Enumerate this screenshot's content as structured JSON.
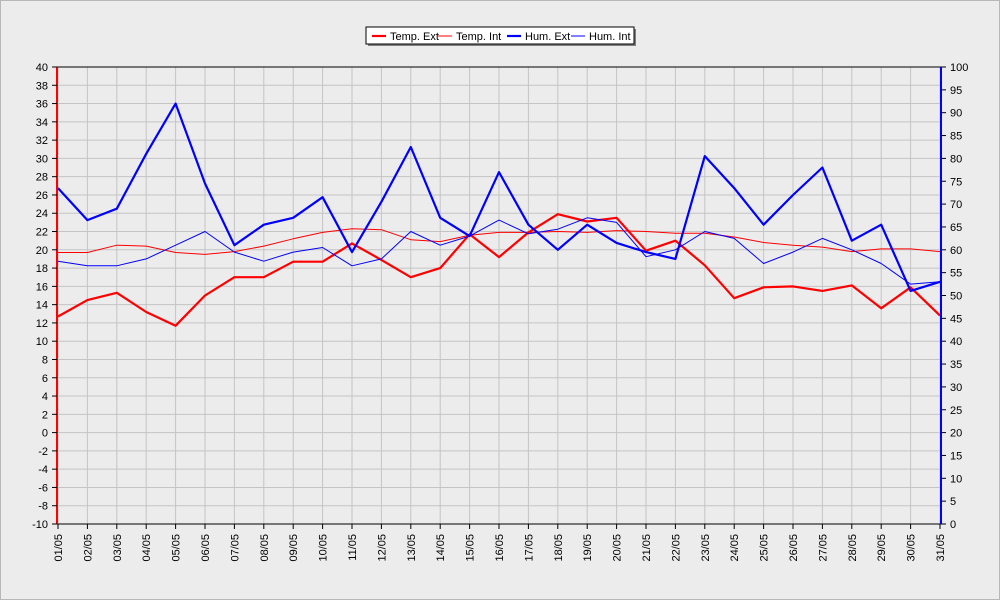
{
  "chart_data": {
    "type": "line",
    "title": "",
    "xlabel": "",
    "ylabel": "",
    "categories": [
      "01/05",
      "02/05",
      "03/05",
      "04/05",
      "05/05",
      "06/05",
      "07/05",
      "08/05",
      "09/05",
      "10/05",
      "11/05",
      "12/05",
      "13/05",
      "14/05",
      "15/05",
      "16/05",
      "17/05",
      "18/05",
      "19/05",
      "20/05",
      "21/05",
      "22/05",
      "23/05",
      "24/05",
      "25/05",
      "26/05",
      "27/05",
      "28/05",
      "29/05",
      "30/05",
      "31/05"
    ],
    "left_axis": {
      "min": -10,
      "max": 40,
      "step": 2,
      "color": "#ff0000",
      "ticks": [
        "-10",
        "-8",
        "-6",
        "-4",
        "-2",
        "0",
        "2",
        "4",
        "6",
        "8",
        "10",
        "12",
        "14",
        "16",
        "18",
        "20",
        "22",
        "24",
        "26",
        "28",
        "30",
        "32",
        "34",
        "36",
        "38",
        "40"
      ]
    },
    "right_axis": {
      "min": 0,
      "max": 100,
      "step": 5,
      "color": "#0000ff",
      "ticks": [
        "0",
        "5",
        "10",
        "15",
        "20",
        "25",
        "30",
        "35",
        "40",
        "45",
        "50",
        "55",
        "60",
        "65",
        "70",
        "75",
        "80",
        "85",
        "90",
        "95",
        "100"
      ]
    },
    "grid": true,
    "legend_position": "top-center",
    "series": [
      {
        "name": "Temp. Ext",
        "axis": "left",
        "color": "#ff0000",
        "width": "thick",
        "values": [
          12.7,
          14.5,
          15.3,
          13.2,
          11.7,
          15.0,
          17.0,
          17.0,
          18.7,
          18.7,
          20.7,
          18.9,
          17.0,
          18.0,
          21.7,
          19.2,
          21.9,
          23.9,
          23.1,
          23.5,
          19.9,
          21.0,
          18.3,
          14.7,
          15.9,
          16.0,
          15.5,
          16.1,
          13.6,
          15.9,
          12.8
        ]
      },
      {
        "name": "Temp. Int",
        "axis": "left",
        "color": "#ff0000",
        "width": "thin",
        "values": [
          19.7,
          19.7,
          20.5,
          20.4,
          19.7,
          19.5,
          19.8,
          20.4,
          21.2,
          21.9,
          22.3,
          22.2,
          21.1,
          20.9,
          21.6,
          21.9,
          21.9,
          22.0,
          21.9,
          22.1,
          22.0,
          21.8,
          21.8,
          21.4,
          20.8,
          20.5,
          20.3,
          19.8,
          20.1,
          20.1,
          19.8
        ]
      },
      {
        "name": "Hum. Ext",
        "axis": "right",
        "color": "#0000ff",
        "width": "thick",
        "values": [
          73.5,
          66.5,
          69.0,
          81.0,
          92.0,
          74.5,
          61.0,
          65.5,
          67.0,
          71.5,
          59.5,
          70.5,
          82.5,
          67.0,
          63.0,
          77.0,
          65.5,
          60.0,
          65.5,
          61.5,
          59.5,
          58.0,
          80.5,
          73.5,
          65.5,
          72.0,
          78.0,
          62.0,
          65.5,
          51.0,
          53.0
        ]
      },
      {
        "name": "Hum. Int",
        "axis": "right",
        "color": "#0000ff",
        "width": "thin",
        "values": [
          57.5,
          56.5,
          56.5,
          58.0,
          61.0,
          64.0,
          59.5,
          57.5,
          59.5,
          60.5,
          56.5,
          58.0,
          64.0,
          61.0,
          63.0,
          66.5,
          63.5,
          64.5,
          67.0,
          66.0,
          58.5,
          60.0,
          64.0,
          62.5,
          57.0,
          59.5,
          62.5,
          60.0,
          57.0,
          52.5,
          53.0
        ]
      }
    ]
  }
}
